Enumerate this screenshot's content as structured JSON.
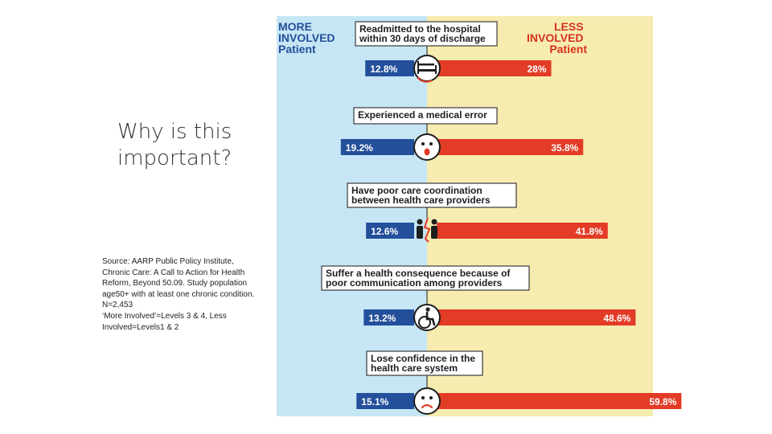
{
  "slide": {
    "title_line1": "Why is this",
    "title_line2": "important?",
    "source_lines": [
      "Source: AARP Public Policy Institute,",
      "Chronic Care: A Call to Action for Health",
      "Reform, Beyond 50.09. Study population",
      "age50+ with at least one chronic condition.",
      "N=2,453",
      "‘More Involved’=Levels 3 & 4, Less",
      "Involved=Levels1 & 2"
    ]
  },
  "infographic": {
    "left_group": [
      "MORE",
      "INVOLVED",
      "Patient"
    ],
    "right_group": [
      "LESS",
      "INVOLVED",
      "Patient"
    ],
    "colors": {
      "left_bg": "#c6e6f5",
      "right_bg": "#f7ecb0",
      "left_bar": "#234f9b",
      "right_bar": "#e23b26",
      "group_label": "#234f9b",
      "less_label": "#d6321c"
    },
    "icons": [
      "hospital-bed-icon",
      "shocked-face-icon",
      "two-people-split-icon",
      "wheelchair-icon",
      "sad-face-icon"
    ]
  },
  "chart_data": {
    "type": "bar",
    "categories": [
      [
        "Readmitted to the hospital",
        "within 30 days of discharge"
      ],
      [
        "Experienced a medical error"
      ],
      [
        "Have poor care coordination",
        "between health care providers"
      ],
      [
        "Suffer a health consequence because of",
        "poor communication among providers"
      ],
      [
        "Lose confidence in the",
        "health care system"
      ]
    ],
    "series": [
      {
        "name": "MORE INVOLVED Patient",
        "values": [
          12.8,
          19.2,
          12.6,
          13.2,
          15.1
        ],
        "labels": [
          "12.8%",
          "19.2%",
          "12.6%",
          "13.2%",
          "15.1%"
        ]
      },
      {
        "name": "LESS INVOLVED Patient",
        "values": [
          28,
          35.8,
          41.8,
          48.6,
          59.8
        ],
        "labels": [
          "28%",
          "35.8%",
          "41.8%",
          "48.6%",
          "59.8%"
        ]
      }
    ]
  }
}
